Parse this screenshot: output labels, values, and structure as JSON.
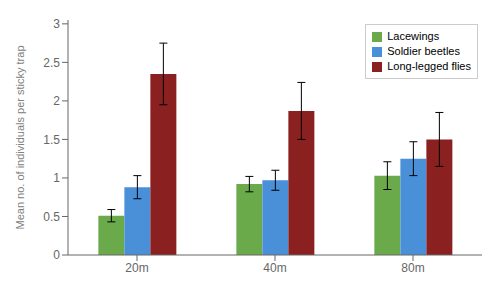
{
  "chart_data": {
    "type": "bar",
    "categories": [
      "20m",
      "40m",
      "80m"
    ],
    "series": [
      {
        "name": "Lacewings",
        "color": "#6aaa4b",
        "values": [
          0.51,
          0.92,
          1.03
        ],
        "errors": [
          0.08,
          0.1,
          0.18
        ]
      },
      {
        "name": "Soldier beetles",
        "color": "#4a90d9",
        "values": [
          0.88,
          0.97,
          1.25
        ],
        "errors": [
          0.15,
          0.13,
          0.22
        ]
      },
      {
        "name": "Long-legged flies",
        "color": "#8b2020",
        "values": [
          2.35,
          1.87,
          1.5
        ],
        "errors": [
          0.4,
          0.37,
          0.35
        ]
      }
    ],
    "ylabel": "Mean no. of individuals  per sticky trap",
    "ylim": [
      0,
      3.05
    ],
    "yticks": [
      0,
      0.5,
      1,
      1.5,
      2,
      2.5,
      3
    ],
    "grid": false,
    "legend": "upper right"
  }
}
